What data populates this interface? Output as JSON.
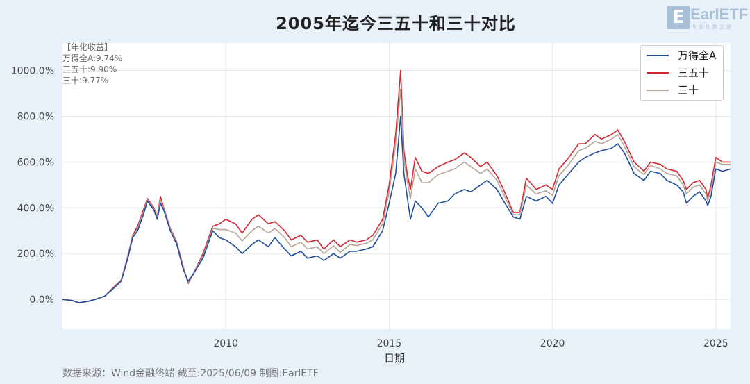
{
  "title": "2005年迄今三五十和三十对比",
  "logo": {
    "mark": "E",
    "name": "EarlETF",
    "tagline": "专业指数之道"
  },
  "annual": {
    "header": "【年化收益】",
    "lines": [
      "万得全A:9.74%",
      "三五十:9.90%",
      "三十:9.77%"
    ]
  },
  "footer": "数据来源：Wind金融终端 截至:2025/06/09 制图:EarlETF",
  "colors": {
    "wind_all_a": "#1f4e9e",
    "sanwushi": "#d22630",
    "sanshi": "#b5a595",
    "grid": "#e6e6e6"
  },
  "chart_data": {
    "type": "line",
    "title": "2005年迄今三五十和三十对比",
    "xlabel": "日期",
    "ylabel": "",
    "xlim": [
      2005.0,
      2025.45
    ],
    "ylim": [
      -130,
      1120
    ],
    "yticks": [
      0,
      200,
      400,
      600,
      800,
      1000
    ],
    "ytick_labels": [
      "0.0%",
      "200.0%",
      "400.0%",
      "600.0%",
      "800.0%",
      "1000.0%"
    ],
    "xticks": [
      2010,
      2015,
      2020,
      2025
    ],
    "xtick_labels": [
      "2010",
      "2015",
      "2020",
      "2025"
    ],
    "grid": true,
    "legend_position": "top-right",
    "x": [
      2005.0,
      2005.3,
      2005.5,
      2005.8,
      2006.0,
      2006.3,
      2006.5,
      2006.8,
      2007.0,
      2007.15,
      2007.3,
      2007.5,
      2007.6,
      2007.8,
      2007.9,
      2008.0,
      2008.1,
      2008.3,
      2008.5,
      2008.7,
      2008.85,
      2009.0,
      2009.3,
      2009.5,
      2009.6,
      2009.8,
      2010.0,
      2010.3,
      2010.5,
      2010.8,
      2011.0,
      2011.3,
      2011.5,
      2011.8,
      2012.0,
      2012.3,
      2012.5,
      2012.8,
      2013.0,
      2013.3,
      2013.5,
      2013.8,
      2014.0,
      2014.3,
      2014.5,
      2014.8,
      2015.0,
      2015.2,
      2015.35,
      2015.45,
      2015.55,
      2015.65,
      2015.8,
      2016.0,
      2016.2,
      2016.5,
      2016.8,
      2017.0,
      2017.3,
      2017.5,
      2017.8,
      2018.0,
      2018.3,
      2018.5,
      2018.8,
      2019.0,
      2019.2,
      2019.5,
      2019.8,
      2020.0,
      2020.2,
      2020.5,
      2020.8,
      2021.0,
      2021.3,
      2021.5,
      2021.8,
      2022.0,
      2022.2,
      2022.5,
      2022.8,
      2023.0,
      2023.3,
      2023.5,
      2023.8,
      2024.0,
      2024.1,
      2024.3,
      2024.5,
      2024.7,
      2024.75,
      2024.85,
      2025.0,
      2025.2,
      2025.45
    ],
    "series": [
      {
        "name": "万得全A",
        "values": [
          0,
          -5,
          -15,
          -8,
          0,
          15,
          40,
          80,
          180,
          270,
          300,
          380,
          430,
          390,
          350,
          420,
          390,
          300,
          240,
          130,
          80,
          110,
          180,
          260,
          300,
          270,
          260,
          230,
          200,
          240,
          260,
          230,
          270,
          220,
          190,
          210,
          180,
          190,
          170,
          200,
          180,
          210,
          210,
          220,
          230,
          300,
          420,
          550,
          800,
          550,
          450,
          350,
          430,
          400,
          360,
          420,
          430,
          460,
          480,
          470,
          500,
          520,
          480,
          430,
          360,
          350,
          450,
          430,
          450,
          420,
          500,
          550,
          600,
          620,
          640,
          650,
          660,
          680,
          640,
          550,
          520,
          560,
          550,
          520,
          500,
          470,
          420,
          450,
          470,
          430,
          410,
          450,
          570,
          560,
          570
        ]
      },
      {
        "name": "三五十",
        "values": [
          0,
          -5,
          -15,
          -8,
          0,
          15,
          45,
          85,
          190,
          280,
          320,
          400,
          440,
          400,
          360,
          450,
          400,
          310,
          250,
          140,
          70,
          110,
          200,
          280,
          320,
          330,
          350,
          330,
          290,
          350,
          370,
          330,
          340,
          300,
          260,
          280,
          250,
          260,
          220,
          260,
          230,
          260,
          250,
          260,
          280,
          350,
          500,
          720,
          1000,
          650,
          550,
          480,
          620,
          560,
          550,
          580,
          600,
          610,
          640,
          620,
          580,
          600,
          540,
          480,
          380,
          380,
          530,
          480,
          500,
          480,
          570,
          620,
          680,
          680,
          720,
          700,
          720,
          740,
          690,
          600,
          560,
          600,
          590,
          570,
          560,
          520,
          480,
          510,
          520,
          480,
          440,
          500,
          620,
          600,
          600
        ]
      },
      {
        "name": "三十",
        "values": [
          0,
          -5,
          -15,
          -8,
          0,
          15,
          42,
          82,
          185,
          275,
          310,
          390,
          435,
          395,
          355,
          435,
          395,
          305,
          245,
          135,
          75,
          110,
          190,
          270,
          310,
          305,
          305,
          290,
          255,
          300,
          320,
          290,
          310,
          270,
          230,
          250,
          220,
          230,
          200,
          235,
          205,
          240,
          235,
          245,
          260,
          330,
          470,
          680,
          920,
          610,
          520,
          440,
          570,
          510,
          510,
          545,
          560,
          570,
          600,
          580,
          550,
          570,
          520,
          460,
          370,
          370,
          500,
          460,
          475,
          455,
          540,
          590,
          650,
          660,
          690,
          680,
          700,
          720,
          670,
          580,
          545,
          585,
          570,
          550,
          540,
          500,
          460,
          490,
          500,
          460,
          430,
          480,
          600,
          590,
          590
        ]
      }
    ]
  }
}
